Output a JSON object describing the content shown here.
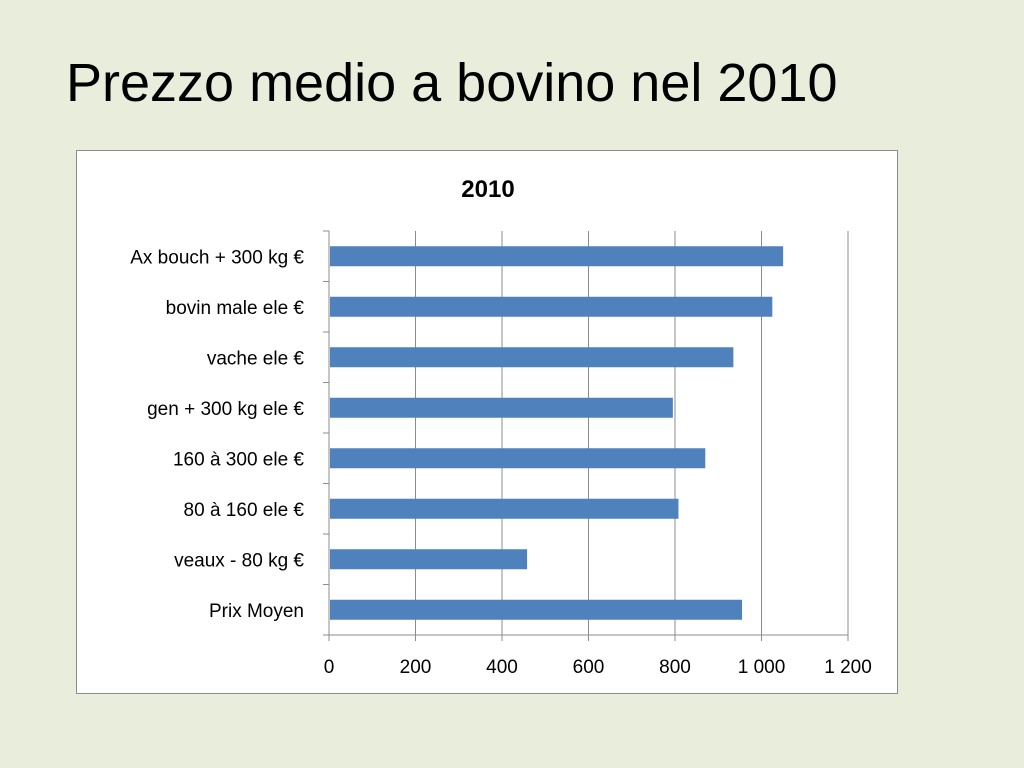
{
  "slide": {
    "title": "Prezzo medio a bovino nel 2010"
  },
  "chart_data": {
    "type": "bar",
    "orientation": "horizontal",
    "title": "2010",
    "categories": [
      "Ax bouch + 300 kg €",
      "bovin male ele €",
      "vache ele €",
      "gen + 300 kg ele €",
      "160 à 300 ele €",
      "80 à 160 ele €",
      "veaux - 80 kg €",
      "Prix Moyen"
    ],
    "values": [
      1050,
      1025,
      935,
      795,
      870,
      808,
      458,
      955
    ],
    "xlim": [
      0,
      1200
    ],
    "xticks": [
      0,
      200,
      400,
      600,
      800,
      1000,
      1200
    ],
    "xtick_labels": [
      "0",
      "200",
      "400",
      "600",
      "800",
      "1 000",
      "1 200"
    ],
    "grid": "vertical",
    "legend": "none",
    "bar_color": "#4f81bd"
  }
}
